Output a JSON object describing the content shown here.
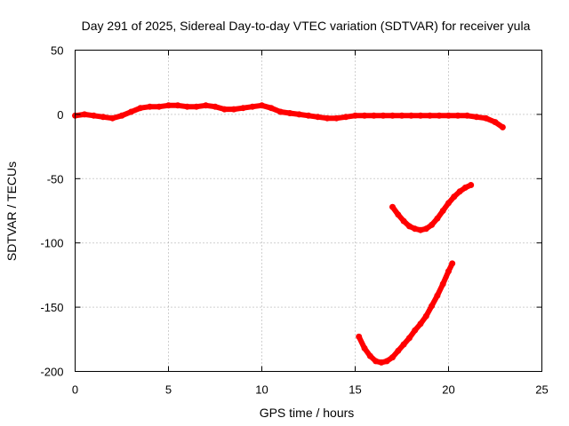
{
  "chart_data": {
    "type": "line",
    "title": "Day 291 of 2025, Sidereal Day-to-day VTEC variation (SDTVAR) for receiver yula",
    "xlabel": "GPS time / hours",
    "ylabel": "SDTVAR / TECUs",
    "xlim": [
      0,
      25
    ],
    "ylim": [
      -200,
      50
    ],
    "xticks": [
      0,
      5,
      10,
      15,
      20,
      25
    ],
    "yticks": [
      -200,
      -150,
      -100,
      -50,
      0,
      50
    ],
    "xtick_labels": [
      "0",
      "5",
      "10",
      "15",
      "20",
      "25"
    ],
    "ytick_labels": [
      "-200",
      "-150",
      "-100",
      "-50",
      "0",
      "50"
    ],
    "grid": true,
    "series_color": "#ff0000",
    "series": [
      {
        "name": "sdtvar-main",
        "x": [
          0.0,
          0.5,
          1.0,
          1.5,
          2.0,
          2.5,
          3.0,
          3.5,
          4.0,
          4.5,
          5.0,
          5.5,
          6.0,
          6.5,
          7.0,
          7.5,
          8.0,
          8.5,
          9.0,
          9.5,
          10.0,
          10.5,
          11.0,
          11.5,
          12.0,
          12.5,
          13.0,
          13.5,
          14.0,
          14.5,
          15.0,
          15.5,
          16.0,
          16.5,
          17.0,
          17.5,
          18.0,
          18.5,
          19.0,
          19.5,
          20.0,
          20.5,
          21.0,
          21.5,
          22.0,
          22.5,
          22.9
        ],
        "y": [
          -1,
          0,
          -1,
          -2,
          -3,
          -1,
          2,
          5,
          6,
          6,
          7,
          7,
          6,
          6,
          7,
          6,
          4,
          4,
          5,
          6,
          7,
          5,
          2,
          1,
          0,
          -1,
          -2,
          -3,
          -3,
          -2,
          -1,
          -1,
          -1,
          -1,
          -1,
          -1,
          -1,
          -1,
          -1,
          -1,
          -1,
          -1,
          -1,
          -2,
          -3,
          -6,
          -10
        ]
      },
      {
        "name": "sdtvar-arc-upper",
        "x": [
          17.0,
          17.3,
          17.6,
          17.9,
          18.2,
          18.5,
          18.8,
          19.1,
          19.4,
          19.7,
          20.0,
          20.3,
          20.6,
          20.9,
          21.2
        ],
        "y": [
          -72,
          -78,
          -83,
          -87,
          -89,
          -90,
          -89,
          -86,
          -81,
          -75,
          -69,
          -64,
          -60,
          -57,
          -55
        ]
      },
      {
        "name": "sdtvar-arc-lower",
        "x": [
          15.2,
          15.5,
          15.8,
          16.1,
          16.4,
          16.7,
          17.0,
          17.3,
          17.6,
          17.9,
          18.2,
          18.5,
          18.8,
          19.1,
          19.4,
          19.7,
          20.0,
          20.2
        ],
        "y": [
          -173,
          -182,
          -188,
          -192,
          -193,
          -192,
          -189,
          -184,
          -179,
          -174,
          -168,
          -163,
          -157,
          -149,
          -141,
          -132,
          -122,
          -116
        ]
      }
    ]
  }
}
